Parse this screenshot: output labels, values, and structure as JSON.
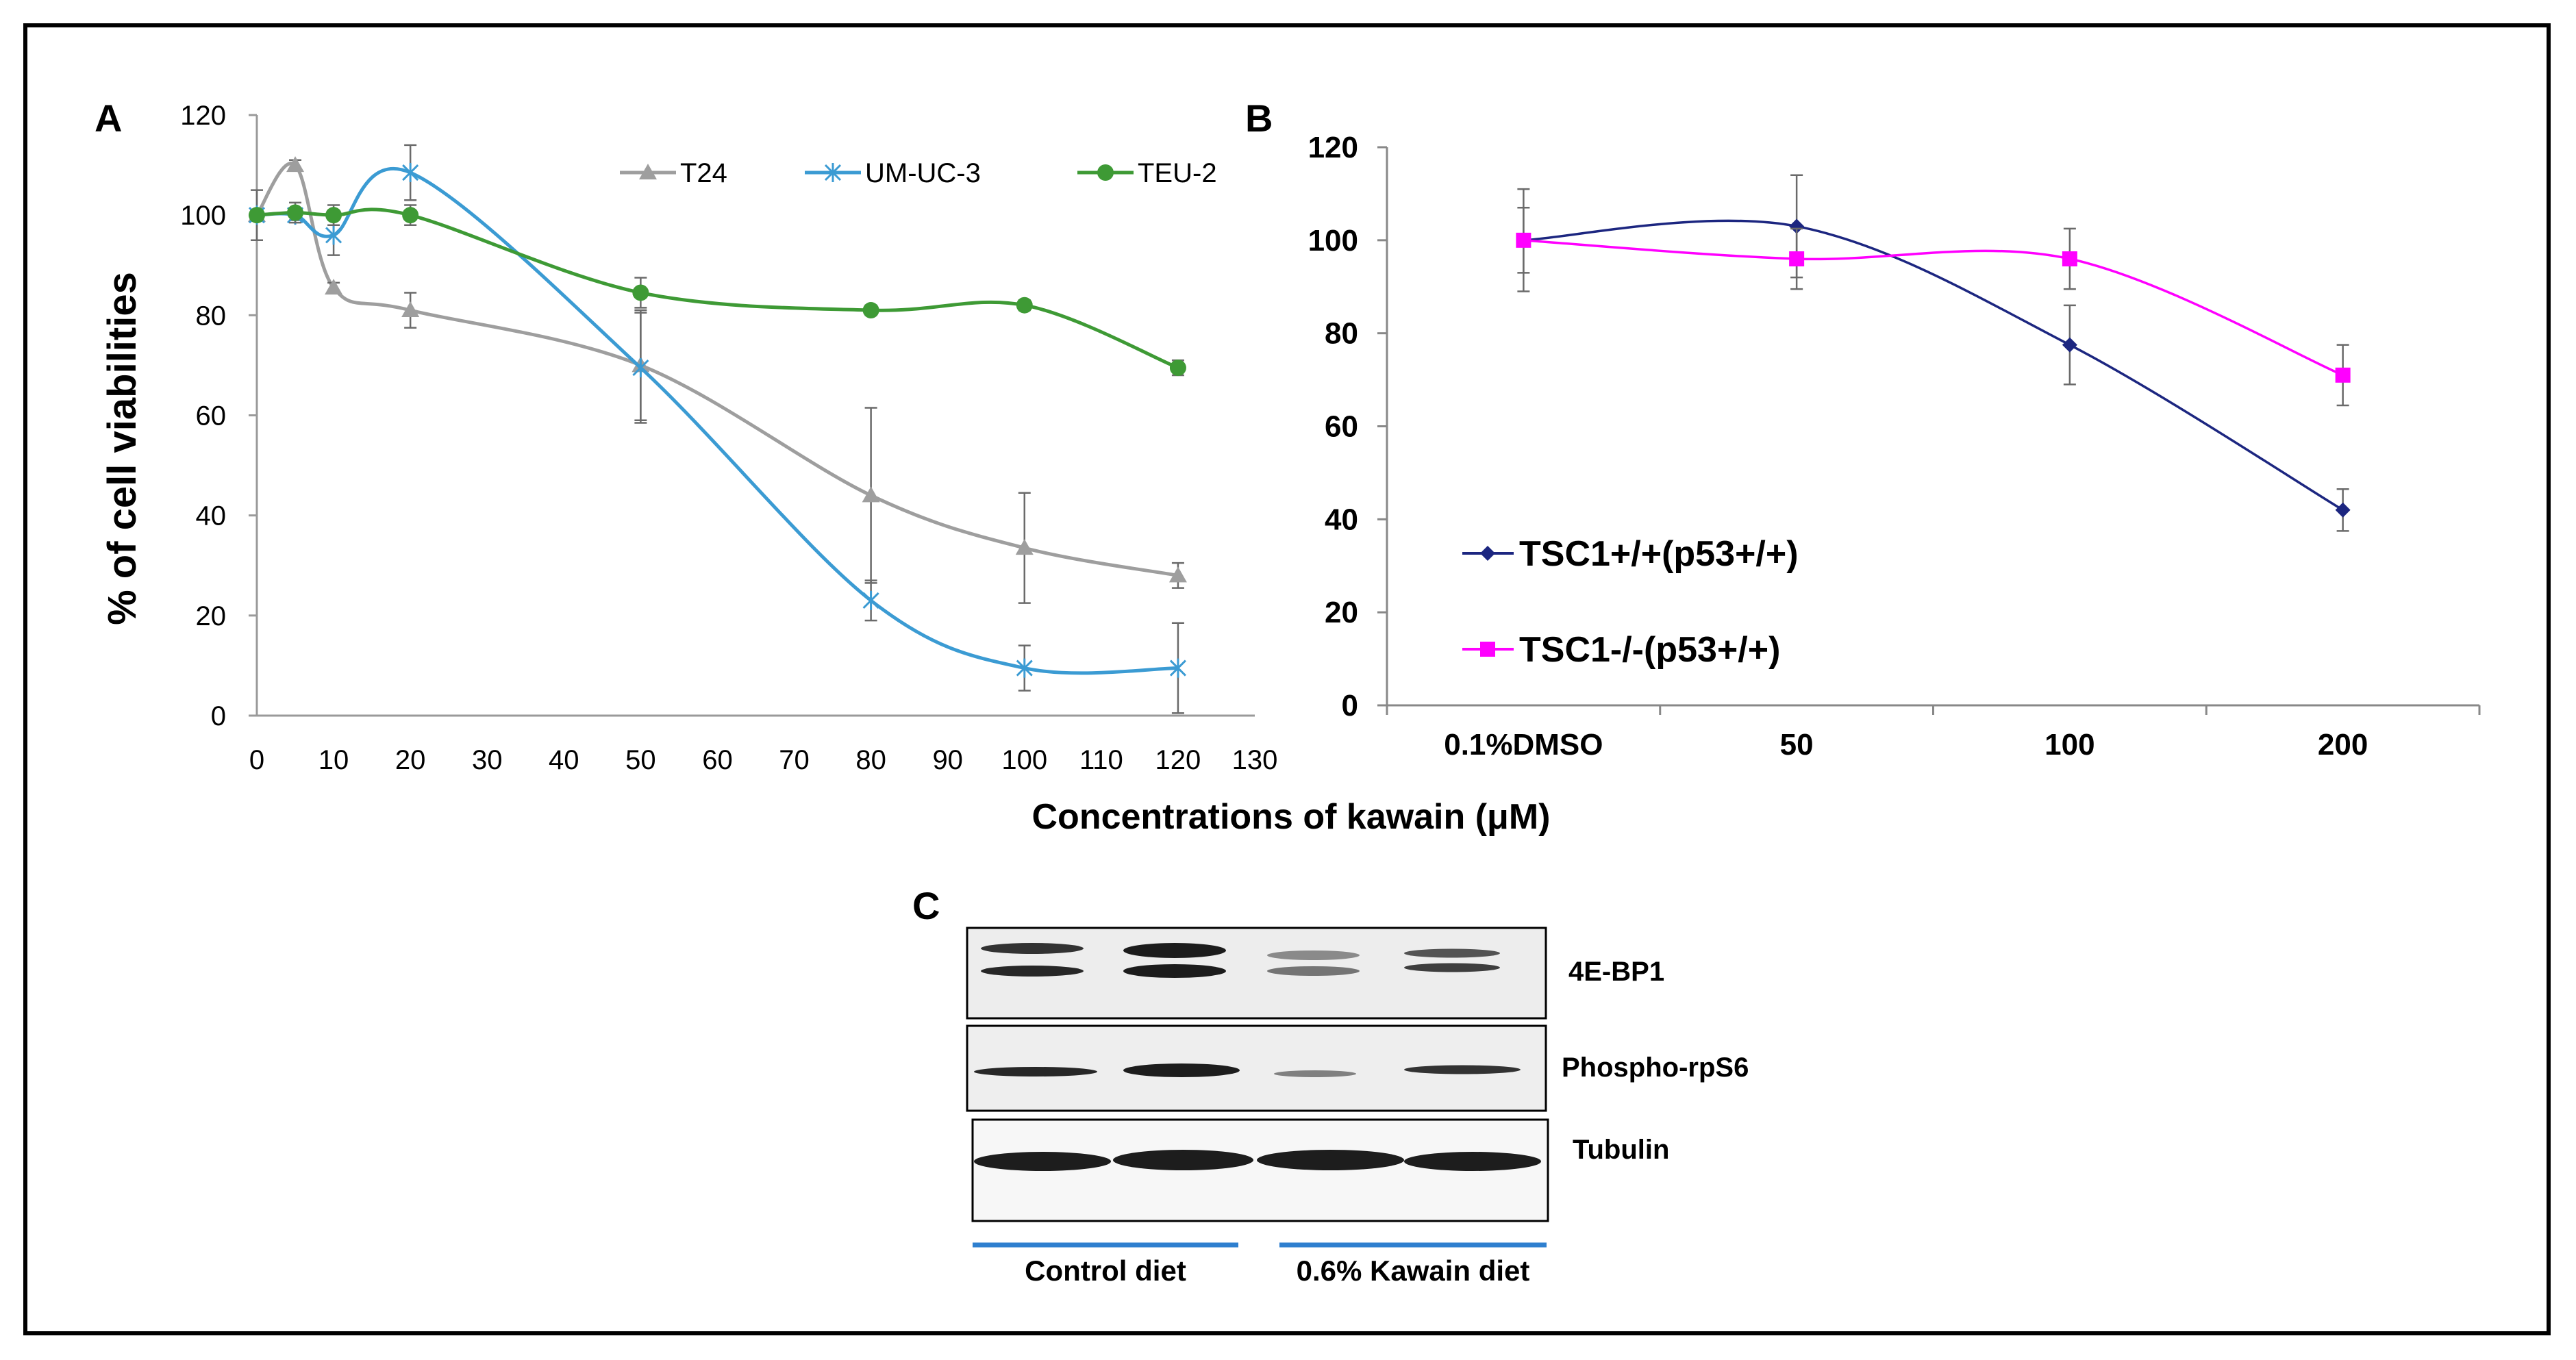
{
  "figure": {
    "panel_a_label": "A",
    "panel_b_label": "B",
    "panel_c_label": "C",
    "shared_xlabel": "Concentrations of kawain (μM)"
  },
  "chart_data": [
    {
      "type": "line",
      "panel": "A",
      "ylabel": "% of cell viabilities",
      "xlim": [
        0,
        130
      ],
      "ylim": [
        0,
        120
      ],
      "xticks": [
        0,
        10,
        20,
        30,
        40,
        50,
        60,
        70,
        80,
        90,
        100,
        110,
        120,
        130
      ],
      "yticks": [
        0,
        20,
        40,
        60,
        80,
        100,
        120
      ],
      "grid": false,
      "legend_position": "top",
      "series": [
        {
          "name": "T24",
          "color": "#9e9e9e",
          "marker": "triangle",
          "x": [
            0,
            5,
            10,
            20,
            50,
            80,
            100,
            120
          ],
          "y": [
            100,
            110,
            85.5,
            81,
            70,
            44,
            33.5,
            28
          ],
          "err": [
            5,
            1,
            1,
            3.5,
            11,
            17.5,
            11,
            2.5
          ]
        },
        {
          "name": "UM-UC-3",
          "color": "#3b9bd3",
          "marker": "star",
          "x": [
            0,
            5,
            10,
            20,
            50,
            80,
            100,
            120
          ],
          "y": [
            100,
            100,
            96,
            108.5,
            69.5,
            23,
            9.5,
            9.5
          ],
          "err": [
            1,
            1,
            4,
            5.5,
            11,
            4,
            4.5,
            9
          ]
        },
        {
          "name": "TEU-2",
          "color": "#3e9a35",
          "marker": "circle",
          "x": [
            0,
            5,
            10,
            20,
            50,
            80,
            100,
            120
          ],
          "y": [
            100,
            100.5,
            100,
            100,
            84.5,
            81,
            82,
            69.5
          ],
          "err": [
            1,
            2,
            2,
            2,
            3,
            1,
            1,
            1.5
          ]
        }
      ]
    },
    {
      "type": "line",
      "panel": "B",
      "categories": [
        "0.1%DMSO",
        "50",
        "100",
        "200"
      ],
      "ylim": [
        0,
        120
      ],
      "yticks": [
        0,
        20,
        40,
        60,
        80,
        100,
        120
      ],
      "grid": false,
      "legend_position": "bottom-left",
      "series": [
        {
          "name": "TSC1+/+(p53+/+)",
          "color": "#1c2680",
          "marker": "diamond",
          "values": [
            100,
            103,
            77.5,
            42
          ],
          "err": [
            7,
            11,
            8.5,
            4.5
          ]
        },
        {
          "name": "TSC1-/-(p53+/+)",
          "color": "#ff00ff",
          "marker": "square",
          "values": [
            100,
            96,
            96,
            71
          ],
          "err": [
            11,
            6.5,
            6.5,
            6.5
          ]
        }
      ]
    }
  ],
  "blot": {
    "labels": [
      "4E-BP1",
      "Phospho-rpS6",
      "Tubulin"
    ],
    "groups": [
      {
        "label": "Control diet"
      },
      {
        "label": "0.6% Kawain diet"
      }
    ],
    "group_line_color": "#2e7fcf"
  }
}
